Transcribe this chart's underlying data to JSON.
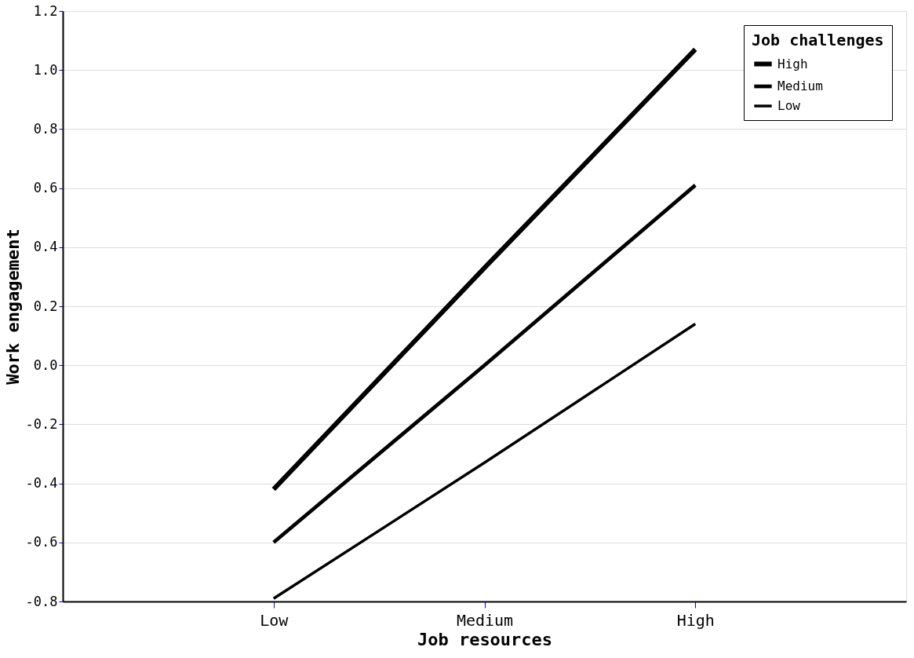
{
  "chart_data": {
    "type": "line",
    "xlabel": "Job resources",
    "ylabel": "Work engagement",
    "legend_title": "Job challenges",
    "categories": [
      "Low",
      "Medium",
      "High"
    ],
    "series": [
      {
        "name": "High",
        "color": "#000000",
        "values": [
          -0.42,
          0.33,
          1.07
        ]
      },
      {
        "name": "Medium",
        "color": "#000000",
        "values": [
          -0.6,
          0.0,
          0.61
        ]
      },
      {
        "name": "Low",
        "color": "#000000",
        "values": [
          -0.79,
          -0.33,
          0.14
        ]
      }
    ],
    "ylim": [
      -0.8,
      1.2
    ],
    "yticks": [
      -0.8,
      -0.6,
      -0.4,
      -0.2,
      {
        "value": 0,
        "label": "0.0"
      },
      0.2,
      0.4,
      0.6,
      0.8,
      {
        "value": 1,
        "label": "1.0"
      },
      1.2
    ],
    "grid": "y",
    "legend": "top right",
    "marker": "none",
    "line_style": "solid"
  }
}
